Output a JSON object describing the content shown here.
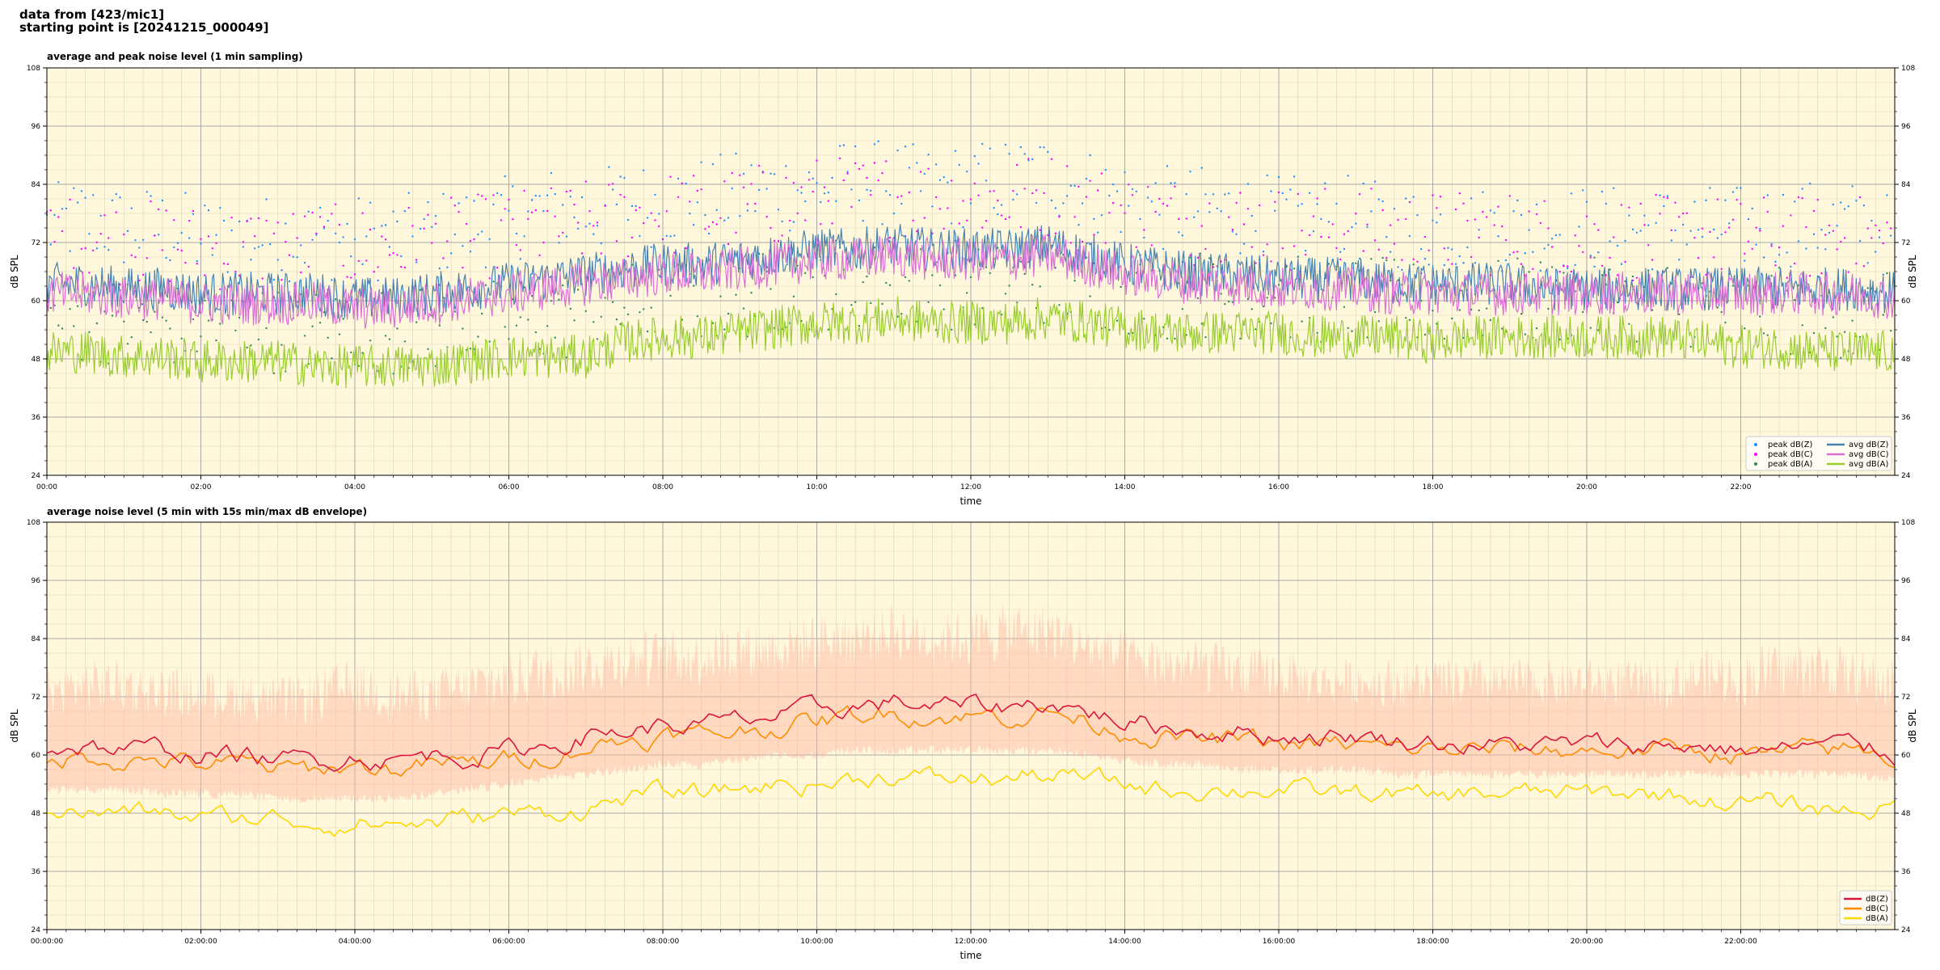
{
  "header": {
    "line1": "data from [423/mic1]",
    "line2": "starting point is [20241215_000049]"
  },
  "colors": {
    "background": "#fff8dc",
    "zAvg": "#4682b4",
    "cAvg": "#da70d6",
    "aAvg": "#9acd32",
    "zPeak": "#1e90ff",
    "cPeak": "#ff00ff",
    "aPeak": "#2e8b57",
    "z5": "#dc143c",
    "c5": "#ff8c00",
    "a5": "#ffd700",
    "envelope": "#ffb6a0"
  },
  "chart_data": [
    {
      "type": "line",
      "title": "average and peak noise level (1 min sampling)",
      "xlabel": "time",
      "ylabel": "dB SPL",
      "xlim": [
        "00:00",
        "24:00"
      ],
      "ylim": [
        24,
        108
      ],
      "xticks": [
        "00:00",
        "02:00",
        "04:00",
        "06:00",
        "08:00",
        "10:00",
        "12:00",
        "14:00",
        "16:00",
        "18:00",
        "20:00",
        "22:00"
      ],
      "yticks": [
        24,
        36,
        48,
        60,
        72,
        84,
        96,
        108
      ],
      "grid": true,
      "legend_position": "bottom-right",
      "legend": [
        "peak dB(Z)",
        "peak dB(C)",
        "peak dB(A)",
        "avg dB(Z)",
        "avg dB(C)",
        "avg dB(A)"
      ],
      "hours": [
        0,
        0.5,
        1,
        1.5,
        2,
        2.5,
        3,
        3.5,
        4,
        4.5,
        5,
        5.5,
        6,
        6.5,
        7,
        7.5,
        8,
        8.5,
        9,
        9.5,
        10,
        10.5,
        11,
        11.5,
        12,
        12.5,
        13,
        13.5,
        14,
        14.5,
        15,
        15.5,
        16,
        16.5,
        17,
        17.5,
        18,
        18.5,
        19,
        19.5,
        20,
        20.5,
        21,
        21.5,
        22,
        22.5,
        23,
        23.5,
        24
      ],
      "series": [
        {
          "name": "avg dB(Z)",
          "style": "line",
          "values": [
            63,
            63,
            62,
            62,
            61,
            61,
            61,
            61,
            60,
            60,
            61,
            62,
            63,
            64,
            65,
            66,
            67,
            67,
            68,
            69,
            70,
            70,
            71,
            70,
            70,
            70,
            71,
            69,
            67,
            66,
            65,
            65,
            64,
            64,
            64,
            63,
            63,
            63,
            63,
            62,
            62,
            62,
            62,
            62,
            62,
            62,
            62,
            62,
            61
          ]
        },
        {
          "name": "avg dB(C)",
          "style": "line",
          "values": [
            61,
            61,
            60,
            60,
            59,
            59,
            59,
            59,
            58,
            58,
            59,
            60,
            61,
            62,
            63,
            64,
            65,
            65,
            66,
            67,
            68,
            68,
            69,
            68,
            68,
            68,
            69,
            67,
            65,
            64,
            63,
            63,
            62,
            62,
            62,
            61,
            61,
            61,
            61,
            61,
            61,
            61,
            61,
            61,
            61,
            61,
            61,
            61,
            60
          ]
        },
        {
          "name": "avg dB(A)",
          "style": "line",
          "values": [
            49,
            49,
            48,
            48,
            47,
            47,
            47,
            46,
            46,
            46,
            46,
            47,
            48,
            48,
            48,
            51,
            52,
            52,
            53,
            54,
            55,
            55,
            56,
            55,
            55,
            55,
            56,
            55,
            54,
            53,
            53,
            53,
            53,
            52,
            52,
            52,
            51,
            52,
            52,
            52,
            52,
            52,
            52,
            51,
            50,
            50,
            49,
            49,
            49
          ]
        },
        {
          "name": "peak dB(Z)",
          "style": "markers",
          "values": [
            74,
            76,
            74,
            74,
            72,
            72,
            72,
            72,
            72,
            72,
            73,
            74,
            76,
            78,
            77,
            79,
            79,
            80,
            81,
            82,
            82,
            84,
            83,
            82,
            83,
            84,
            85,
            82,
            80,
            78,
            78,
            77,
            76,
            76,
            76,
            74,
            74,
            74,
            74,
            74,
            74,
            74,
            74,
            74,
            74,
            75,
            75,
            75,
            72
          ]
        },
        {
          "name": "peak dB(C)",
          "style": "markers",
          "values": [
            72,
            72,
            71,
            71,
            70,
            70,
            70,
            70,
            70,
            70,
            71,
            72,
            73,
            74,
            75,
            76,
            77,
            77,
            78,
            79,
            80,
            80,
            81,
            80,
            80,
            80,
            81,
            79,
            77,
            76,
            75,
            75,
            74,
            74,
            74,
            73,
            73,
            73,
            73,
            72,
            72,
            72,
            72,
            72,
            72,
            72,
            72,
            72,
            71
          ]
        },
        {
          "name": "peak dB(A)",
          "style": "markers",
          "values": [
            55,
            55,
            55,
            54,
            54,
            54,
            53,
            53,
            53,
            53,
            53,
            54,
            55,
            55,
            56,
            58,
            59,
            59,
            60,
            61,
            62,
            62,
            63,
            62,
            62,
            62,
            63,
            62,
            61,
            60,
            60,
            60,
            60,
            59,
            59,
            59,
            58,
            59,
            59,
            59,
            59,
            59,
            59,
            58,
            57,
            57,
            56,
            56,
            56
          ]
        }
      ]
    },
    {
      "type": "line",
      "title": "average noise level (5 min with 15s min/max dB envelope)",
      "xlabel": "time",
      "ylabel": "dB SPL",
      "xlim": [
        "00:00:00",
        "24:00:00"
      ],
      "ylim": [
        24,
        108
      ],
      "xticks": [
        "00:00:00",
        "02:00:00",
        "04:00:00",
        "06:00:00",
        "08:00:00",
        "10:00:00",
        "12:00:00",
        "14:00:00",
        "16:00:00",
        "18:00:00",
        "20:00:00",
        "22:00:00"
      ],
      "yticks": [
        24,
        36,
        48,
        60,
        72,
        84,
        96,
        108
      ],
      "grid": true,
      "legend_position": "bottom-right",
      "legend": [
        "dB(Z)",
        "dB(C)",
        "dB(A)"
      ],
      "hours": [
        0,
        0.5,
        1,
        1.5,
        2,
        2.5,
        3,
        3.5,
        4,
        4.5,
        5,
        5.5,
        6,
        6.5,
        7,
        7.5,
        8,
        8.5,
        9,
        9.5,
        10,
        10.5,
        11,
        11.5,
        12,
        12.5,
        13,
        13.5,
        14,
        14.5,
        15,
        15.5,
        16,
        16.5,
        17,
        17.5,
        18,
        18.5,
        19,
        19.5,
        20,
        20.5,
        21,
        21.5,
        22,
        22.5,
        23,
        23.5,
        24
      ],
      "envelope": {
        "low": [
          54,
          54,
          54,
          53,
          53,
          53,
          52,
          52,
          52,
          52,
          53,
          54,
          55,
          56,
          57,
          58,
          59,
          59,
          60,
          61,
          61,
          62,
          62,
          62,
          62,
          62,
          62,
          61,
          60,
          59,
          59,
          58,
          58,
          58,
          58,
          57,
          57,
          57,
          57,
          57,
          57,
          57,
          57,
          57,
          57,
          57,
          57,
          57,
          56
        ],
        "high": [
          78,
          80,
          80,
          78,
          78,
          78,
          76,
          78,
          80,
          78,
          78,
          80,
          82,
          84,
          84,
          86,
          86,
          86,
          88,
          88,
          90,
          90,
          92,
          90,
          90,
          92,
          92,
          88,
          86,
          84,
          84,
          82,
          82,
          80,
          80,
          80,
          80,
          80,
          80,
          80,
          80,
          80,
          80,
          82,
          82,
          84,
          84,
          82,
          80
        ]
      },
      "series": [
        {
          "name": "dB(Z)",
          "values": [
            61,
            62,
            61,
            61,
            60,
            60,
            59,
            59,
            60,
            59,
            60,
            60,
            61,
            62,
            64,
            65,
            66,
            66,
            67,
            68,
            69,
            70,
            71,
            70,
            70,
            70,
            71,
            69,
            67,
            66,
            65,
            65,
            64,
            64,
            64,
            63,
            63,
            62,
            62,
            62,
            62,
            62,
            62,
            62,
            61,
            61,
            62,
            62,
            60
          ]
        },
        {
          "name": "dB(C)",
          "values": [
            59,
            60,
            59,
            59,
            58,
            58,
            57,
            57,
            58,
            57,
            58,
            58,
            59,
            60,
            62,
            63,
            64,
            64,
            65,
            66,
            67,
            68,
            69,
            68,
            68,
            68,
            69,
            67,
            65,
            64,
            63,
            63,
            62,
            62,
            62,
            61,
            61,
            61,
            61,
            61,
            61,
            61,
            61,
            61,
            60,
            60,
            61,
            61,
            59
          ]
        },
        {
          "name": "dB(A)",
          "values": [
            49,
            48,
            48,
            48,
            47,
            47,
            47,
            46,
            46,
            46,
            46,
            47,
            48,
            48,
            49,
            51,
            52,
            52,
            53,
            54,
            54,
            55,
            56,
            55,
            55,
            55,
            56,
            55,
            54,
            53,
            53,
            53,
            53,
            52,
            52,
            52,
            51,
            52,
            52,
            52,
            52,
            52,
            52,
            51,
            50,
            50,
            49,
            49,
            49
          ]
        }
      ]
    }
  ]
}
